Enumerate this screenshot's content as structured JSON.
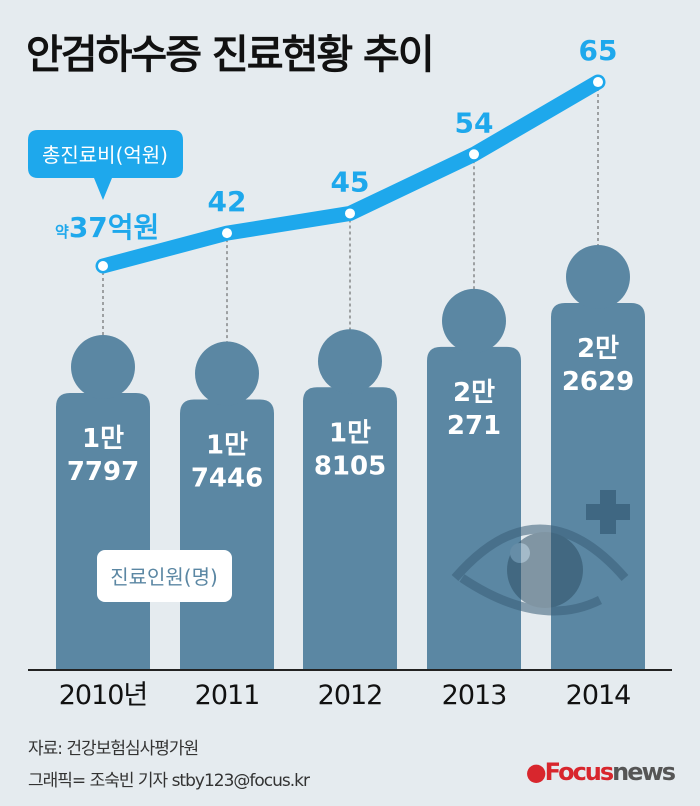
{
  "title": "안검하수증 진료현황 추이",
  "chart_data": {
    "type": "bar+line",
    "categories": [
      "2010년",
      "2011",
      "2012",
      "2013",
      "2014"
    ],
    "series": [
      {
        "name": "진료인원(명)",
        "type": "bar",
        "values": [
          17797,
          17446,
          18105,
          20271,
          22629
        ],
        "labels": [
          [
            "1만",
            "7797"
          ],
          [
            "1만",
            "7446"
          ],
          [
            "1만",
            "8105"
          ],
          [
            "2만",
            "271"
          ],
          [
            "2만",
            "2629"
          ]
        ],
        "color": "#5b87a3"
      },
      {
        "name": "총진료비(억원)",
        "type": "line",
        "values": [
          37,
          42,
          45,
          54,
          65
        ],
        "labels": [
          "37억원",
          "42",
          "45",
          "54",
          "65"
        ],
        "first_label_prefix": "약",
        "color": "#1ea8ec"
      }
    ],
    "grid": false
  },
  "icons": [
    "eye-icon",
    "plus-icon"
  ],
  "source": "자료: 건강보험심사평가원",
  "credit": "그래픽= 조숙빈 기자 stby123@focus.kr",
  "logo": {
    "focus": "Focus",
    "news": "news"
  }
}
